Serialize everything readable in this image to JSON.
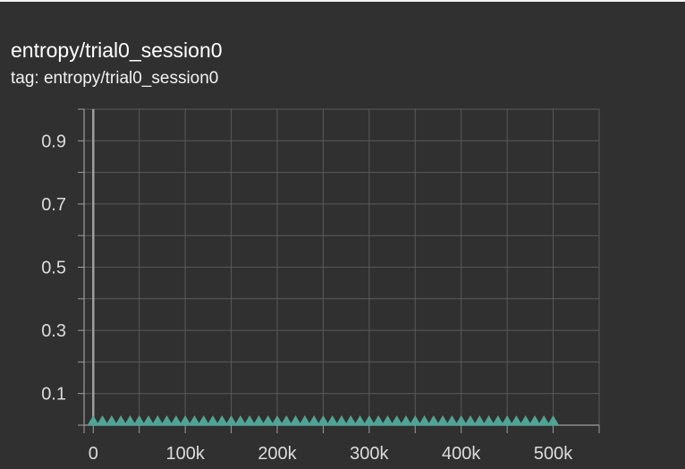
{
  "card": {
    "title": "entropy/trial0_session0",
    "tag": "tag: entropy/trial0_session0"
  },
  "colors": {
    "background": "#303030",
    "grid": "#5a5a5a",
    "axis": "#9e9e9e",
    "series": "#4aa796"
  },
  "chart_data": {
    "type": "scatter",
    "title": "entropy/trial0_session0",
    "xlabel": "",
    "ylabel": "",
    "xlim": [
      -10000,
      550000
    ],
    "ylim": [
      0,
      1.0
    ],
    "grid": true,
    "legend": "none",
    "marker": "triangle",
    "x_ticks": [
      {
        "value": 0,
        "label": "0"
      },
      {
        "value": 100000,
        "label": "100k"
      },
      {
        "value": 200000,
        "label": "200k"
      },
      {
        "value": 300000,
        "label": "300k"
      },
      {
        "value": 400000,
        "label": "400k"
      },
      {
        "value": 500000,
        "label": "500k"
      }
    ],
    "y_ticks": [
      {
        "value": 0.1,
        "label": "0.1"
      },
      {
        "value": 0.3,
        "label": "0.3"
      },
      {
        "value": 0.5,
        "label": "0.5"
      },
      {
        "value": 0.7,
        "label": "0.7"
      },
      {
        "value": 0.9,
        "label": "0.9"
      }
    ],
    "series": [
      {
        "color": "#4aa796",
        "x": [
          0,
          10000,
          20000,
          30000,
          40000,
          50000,
          60000,
          70000,
          80000,
          90000,
          100000,
          110000,
          120000,
          130000,
          140000,
          150000,
          160000,
          170000,
          180000,
          190000,
          200000,
          210000,
          220000,
          230000,
          240000,
          250000,
          260000,
          270000,
          280000,
          290000,
          300000,
          310000,
          320000,
          330000,
          340000,
          350000,
          360000,
          370000,
          380000,
          390000,
          400000,
          410000,
          420000,
          430000,
          440000,
          450000,
          460000,
          470000,
          480000,
          490000,
          500000
        ],
        "y": [
          0,
          0,
          0,
          0,
          0,
          0,
          0,
          0,
          0,
          0,
          0,
          0,
          0,
          0,
          0,
          0,
          0,
          0,
          0,
          0,
          0,
          0,
          0,
          0,
          0,
          0,
          0,
          0,
          0,
          0,
          0,
          0,
          0,
          0,
          0,
          0,
          0,
          0,
          0,
          0,
          0,
          0,
          0,
          0,
          0,
          0,
          0,
          0,
          0,
          0,
          0
        ]
      }
    ]
  }
}
